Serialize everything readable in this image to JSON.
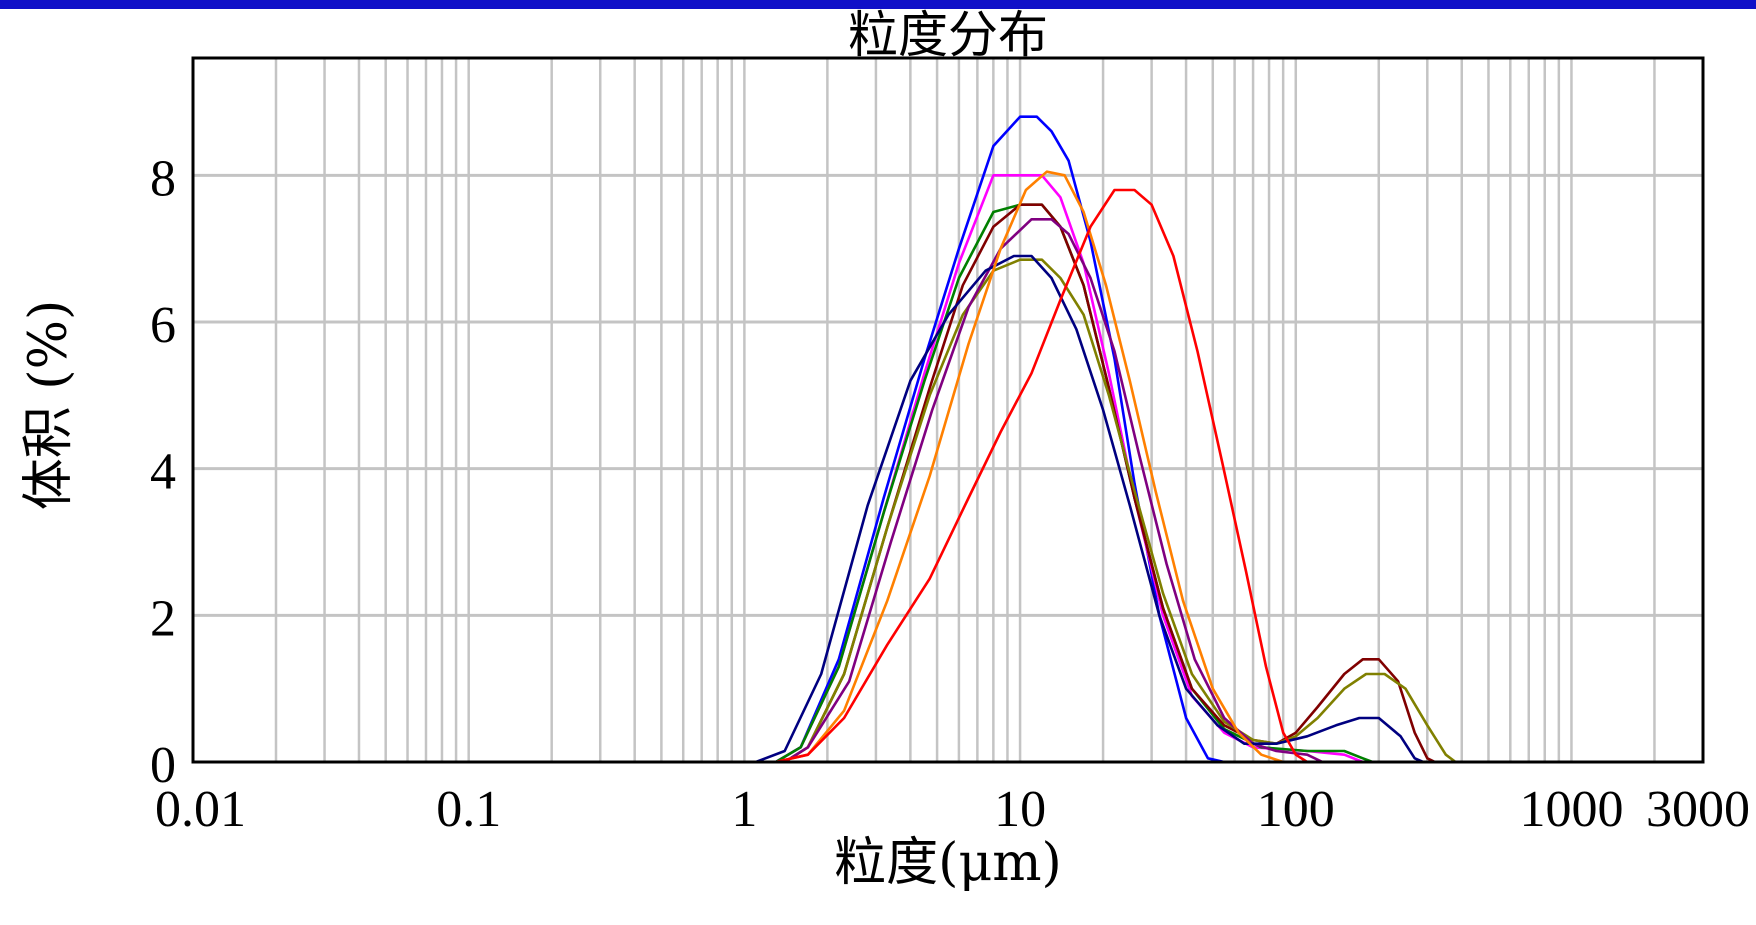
{
  "chart_data": {
    "type": "line",
    "title": "粒度分布",
    "xlabel": "粒度(μm)",
    "ylabel": "体积 (%)",
    "x_scale": "log",
    "xlim": [
      0.01,
      3000
    ],
    "ylim": [
      0,
      9.6
    ],
    "x_ticks": [
      {
        "value": 0.01,
        "label": "0.01"
      },
      {
        "value": 0.1,
        "label": "0.1"
      },
      {
        "value": 1,
        "label": "1"
      },
      {
        "value": 10,
        "label": "10"
      },
      {
        "value": 100,
        "label": "100"
      },
      {
        "value": 1000,
        "label": "1000"
      },
      {
        "value": 3000,
        "label": "3000"
      }
    ],
    "y_ticks": [
      {
        "value": 0,
        "label": "0"
      },
      {
        "value": 2,
        "label": "2"
      },
      {
        "value": 4,
        "label": "4"
      },
      {
        "value": 6,
        "label": "6"
      },
      {
        "value": 8,
        "label": "8"
      }
    ],
    "grid": true,
    "legend": "none",
    "series": [
      {
        "color": "#0000ff",
        "points": [
          [
            0.02,
            0
          ],
          [
            1.3,
            0
          ],
          [
            1.6,
            0.2
          ],
          [
            2.2,
            1.4
          ],
          [
            3.2,
            3.6
          ],
          [
            4.5,
            5.5
          ],
          [
            6,
            7
          ],
          [
            8,
            8.4
          ],
          [
            10,
            8.8
          ],
          [
            11.5,
            8.8
          ],
          [
            13,
            8.6
          ],
          [
            15,
            8.2
          ],
          [
            18,
            7.1
          ],
          [
            22,
            5.5
          ],
          [
            26,
            3.8
          ],
          [
            32,
            2.0
          ],
          [
            40,
            0.6
          ],
          [
            48,
            0.05
          ],
          [
            55,
            0
          ],
          [
            2000,
            0
          ]
        ]
      },
      {
        "color": "#ff00ff",
        "points": [
          [
            0.02,
            0
          ],
          [
            1.3,
            0
          ],
          [
            1.6,
            0.2
          ],
          [
            2.2,
            1.3
          ],
          [
            3.2,
            3.4
          ],
          [
            4.5,
            5.3
          ],
          [
            6,
            6.8
          ],
          [
            8,
            8.0
          ],
          [
            10,
            8.0
          ],
          [
            12,
            8.0
          ],
          [
            14,
            7.7
          ],
          [
            17,
            6.8
          ],
          [
            21,
            5.3
          ],
          [
            26,
            3.6
          ],
          [
            33,
            2.0
          ],
          [
            42,
            0.9
          ],
          [
            55,
            0.4
          ],
          [
            70,
            0.2
          ],
          [
            110,
            0.15
          ],
          [
            150,
            0.1
          ],
          [
            175,
            0
          ],
          [
            2000,
            0
          ]
        ]
      },
      {
        "color": "#008000",
        "points": [
          [
            0.02,
            0
          ],
          [
            1.3,
            0
          ],
          [
            1.6,
            0.2
          ],
          [
            2.2,
            1.3
          ],
          [
            3.2,
            3.4
          ],
          [
            4.5,
            5.2
          ],
          [
            6,
            6.6
          ],
          [
            8,
            7.5
          ],
          [
            10,
            7.6
          ],
          [
            12,
            7.6
          ],
          [
            14,
            7.3
          ],
          [
            17,
            6.5
          ],
          [
            21,
            5.1
          ],
          [
            26,
            3.6
          ],
          [
            33,
            2.1
          ],
          [
            42,
            1.0
          ],
          [
            55,
            0.45
          ],
          [
            75,
            0.2
          ],
          [
            110,
            0.15
          ],
          [
            150,
            0.15
          ],
          [
            175,
            0.05
          ],
          [
            190,
            0
          ],
          [
            2000,
            0
          ]
        ]
      },
      {
        "color": "#800000",
        "points": [
          [
            0.02,
            0
          ],
          [
            1.4,
            0
          ],
          [
            1.7,
            0.2
          ],
          [
            2.3,
            1.2
          ],
          [
            3.3,
            3.2
          ],
          [
            4.7,
            5.1
          ],
          [
            6.2,
            6.5
          ],
          [
            8,
            7.3
          ],
          [
            10,
            7.6
          ],
          [
            12,
            7.6
          ],
          [
            14,
            7.3
          ],
          [
            17,
            6.5
          ],
          [
            21,
            5.1
          ],
          [
            26,
            3.6
          ],
          [
            33,
            2.1
          ],
          [
            42,
            1.0
          ],
          [
            55,
            0.5
          ],
          [
            70,
            0.3
          ],
          [
            85,
            0.25
          ],
          [
            100,
            0.4
          ],
          [
            120,
            0.75
          ],
          [
            150,
            1.2
          ],
          [
            175,
            1.4
          ],
          [
            200,
            1.4
          ],
          [
            235,
            1.1
          ],
          [
            270,
            0.4
          ],
          [
            300,
            0.05
          ],
          [
            320,
            0
          ],
          [
            2000,
            0
          ]
        ]
      },
      {
        "color": "#808000",
        "points": [
          [
            0.02,
            0
          ],
          [
            1.4,
            0
          ],
          [
            1.7,
            0.2
          ],
          [
            2.3,
            1.2
          ],
          [
            3.3,
            3.2
          ],
          [
            4.7,
            5.0
          ],
          [
            6.2,
            6.1
          ],
          [
            8,
            6.7
          ],
          [
            10,
            6.85
          ],
          [
            12,
            6.85
          ],
          [
            14,
            6.6
          ],
          [
            17,
            6.1
          ],
          [
            21,
            5.0
          ],
          [
            26,
            3.7
          ],
          [
            33,
            2.3
          ],
          [
            42,
            1.2
          ],
          [
            55,
            0.55
          ],
          [
            70,
            0.3
          ],
          [
            85,
            0.25
          ],
          [
            100,
            0.35
          ],
          [
            120,
            0.6
          ],
          [
            150,
            1.0
          ],
          [
            180,
            1.2
          ],
          [
            210,
            1.2
          ],
          [
            250,
            1.0
          ],
          [
            300,
            0.5
          ],
          [
            350,
            0.1
          ],
          [
            380,
            0
          ],
          [
            2000,
            0
          ]
        ]
      },
      {
        "color": "#800080",
        "points": [
          [
            0.02,
            0
          ],
          [
            1.4,
            0
          ],
          [
            1.7,
            0.2
          ],
          [
            2.4,
            1.1
          ],
          [
            3.4,
            3.0
          ],
          [
            4.8,
            4.8
          ],
          [
            6.5,
            6.2
          ],
          [
            8.5,
            7.0
          ],
          [
            11,
            7.4
          ],
          [
            13,
            7.4
          ],
          [
            15,
            7.2
          ],
          [
            18,
            6.6
          ],
          [
            22,
            5.6
          ],
          [
            27,
            4.2
          ],
          [
            34,
            2.7
          ],
          [
            43,
            1.4
          ],
          [
            55,
            0.6
          ],
          [
            70,
            0.25
          ],
          [
            85,
            0.15
          ],
          [
            110,
            0.1
          ],
          [
            125,
            0
          ],
          [
            2000,
            0
          ]
        ]
      },
      {
        "color": "#000080",
        "points": [
          [
            0.02,
            0
          ],
          [
            1.1,
            0
          ],
          [
            1.4,
            0.15
          ],
          [
            1.9,
            1.2
          ],
          [
            2.8,
            3.5
          ],
          [
            4,
            5.2
          ],
          [
            5.5,
            6.1
          ],
          [
            7.5,
            6.7
          ],
          [
            9.5,
            6.9
          ],
          [
            11,
            6.9
          ],
          [
            13,
            6.6
          ],
          [
            16,
            5.9
          ],
          [
            20,
            4.8
          ],
          [
            25,
            3.5
          ],
          [
            32,
            2.0
          ],
          [
            40,
            1.0
          ],
          [
            52,
            0.5
          ],
          [
            65,
            0.25
          ],
          [
            85,
            0.25
          ],
          [
            110,
            0.35
          ],
          [
            140,
            0.5
          ],
          [
            170,
            0.6
          ],
          [
            200,
            0.6
          ],
          [
            240,
            0.35
          ],
          [
            270,
            0.05
          ],
          [
            290,
            0
          ],
          [
            2000,
            0
          ]
        ]
      },
      {
        "color": "#ff8000",
        "points": [
          [
            0.02,
            0
          ],
          [
            1.3,
            0
          ],
          [
            1.7,
            0.1
          ],
          [
            2.3,
            0.7
          ],
          [
            3.3,
            2.2
          ],
          [
            4.7,
            3.9
          ],
          [
            6.5,
            5.7
          ],
          [
            8.5,
            7.0
          ],
          [
            10.5,
            7.8
          ],
          [
            12.5,
            8.05
          ],
          [
            14.5,
            8.0
          ],
          [
            17,
            7.5
          ],
          [
            20.5,
            6.5
          ],
          [
            25,
            5.2
          ],
          [
            31,
            3.7
          ],
          [
            39,
            2.2
          ],
          [
            50,
            1.0
          ],
          [
            62,
            0.4
          ],
          [
            75,
            0.1
          ],
          [
            90,
            0
          ],
          [
            2000,
            0
          ]
        ]
      },
      {
        "color": "#ff0000",
        "points": [
          [
            0.02,
            0
          ],
          [
            1.3,
            0
          ],
          [
            1.7,
            0.1
          ],
          [
            2.3,
            0.6
          ],
          [
            3.3,
            1.6
          ],
          [
            4.7,
            2.5
          ],
          [
            6.5,
            3.6
          ],
          [
            8.5,
            4.5
          ],
          [
            11,
            5.3
          ],
          [
            14,
            6.3
          ],
          [
            18,
            7.3
          ],
          [
            22,
            7.8
          ],
          [
            26,
            7.8
          ],
          [
            30,
            7.6
          ],
          [
            36,
            6.9
          ],
          [
            44,
            5.6
          ],
          [
            54,
            4.1
          ],
          [
            66,
            2.6
          ],
          [
            78,
            1.3
          ],
          [
            90,
            0.4
          ],
          [
            100,
            0.1
          ],
          [
            110,
            0
          ],
          [
            2000,
            0
          ]
        ]
      }
    ]
  }
}
